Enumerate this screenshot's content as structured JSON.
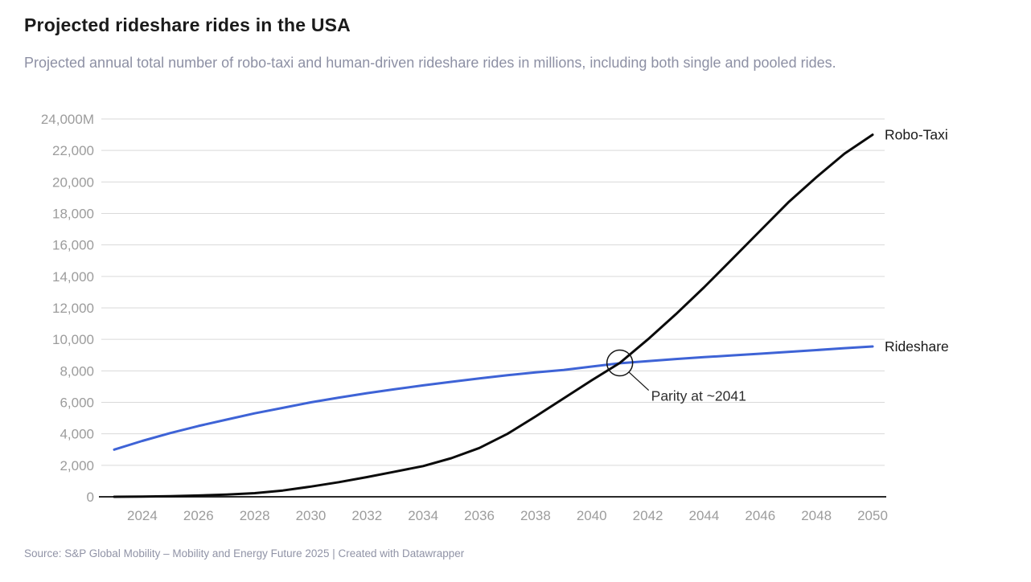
{
  "header": {
    "title": "Projected rideshare rides in the USA",
    "subtitle": "Projected annual total number of robo-taxi and human-driven rideshare rides in millions, including both single and pooled rides."
  },
  "footer": {
    "source": "Source: S&P Global Mobility – Mobility and Energy Future 2025 | Created with Datawrapper"
  },
  "colors": {
    "robo_taxi_line": "#0b0b0b",
    "rideshare_line": "#3e63d6",
    "gridline": "#d9d9d9",
    "axis_line": "#2a2a2a",
    "tick_label": "#9c9c9c",
    "series_label": "#1a1a1a",
    "annotation_text": "#2f2f2f",
    "annotation_stroke": "#141414"
  },
  "chart_data": {
    "type": "line",
    "title": "Projected rideshare rides in the USA",
    "xlabel": "",
    "ylabel": "",
    "xlim": [
      2023,
      2050
    ],
    "ylim": [
      0,
      24000
    ],
    "grid": true,
    "legend_position": "line-end-labels",
    "x": [
      2023,
      2024,
      2025,
      2026,
      2027,
      2028,
      2029,
      2030,
      2031,
      2032,
      2033,
      2034,
      2035,
      2036,
      2037,
      2038,
      2039,
      2040,
      2041,
      2042,
      2043,
      2044,
      2045,
      2046,
      2047,
      2048,
      2049,
      2050
    ],
    "series": [
      {
        "name": "Robo-Taxi",
        "color_key": "robo_taxi_line",
        "values": [
          0,
          15,
          40,
          80,
          140,
          230,
          400,
          650,
          930,
          1250,
          1600,
          1950,
          2450,
          3100,
          4000,
          5100,
          6250,
          7400,
          8500,
          10000,
          11600,
          13300,
          15100,
          16900,
          18700,
          20300,
          21800,
          23000
        ]
      },
      {
        "name": "Rideshare",
        "color_key": "rideshare_line",
        "values": [
          3000,
          3550,
          4050,
          4500,
          4900,
          5300,
          5650,
          6000,
          6300,
          6580,
          6840,
          7080,
          7300,
          7520,
          7720,
          7900,
          8060,
          8270,
          8480,
          8620,
          8750,
          8870,
          8980,
          9090,
          9200,
          9320,
          9440,
          9550
        ]
      }
    ],
    "y_ticks": [
      {
        "value": 0,
        "label": "0"
      },
      {
        "value": 2000,
        "label": "2,000"
      },
      {
        "value": 4000,
        "label": "4,000"
      },
      {
        "value": 6000,
        "label": "6,000"
      },
      {
        "value": 8000,
        "label": "8,000"
      },
      {
        "value": 10000,
        "label": "10,000"
      },
      {
        "value": 12000,
        "label": "12,000"
      },
      {
        "value": 14000,
        "label": "14,000"
      },
      {
        "value": 16000,
        "label": "16,000"
      },
      {
        "value": 18000,
        "label": "18,000"
      },
      {
        "value": 20000,
        "label": "20,000"
      },
      {
        "value": 22000,
        "label": "22,000"
      },
      {
        "value": 24000,
        "label": "24,000M"
      }
    ],
    "x_ticks": [
      {
        "value": 2024,
        "label": "2024"
      },
      {
        "value": 2026,
        "label": "2026"
      },
      {
        "value": 2028,
        "label": "2028"
      },
      {
        "value": 2030,
        "label": "2030"
      },
      {
        "value": 2032,
        "label": "2032"
      },
      {
        "value": 2034,
        "label": "2034"
      },
      {
        "value": 2036,
        "label": "2036"
      },
      {
        "value": 2038,
        "label": "2038"
      },
      {
        "value": 2040,
        "label": "2040"
      },
      {
        "value": 2042,
        "label": "2042"
      },
      {
        "value": 2044,
        "label": "2044"
      },
      {
        "value": 2046,
        "label": "2046"
      },
      {
        "value": 2048,
        "label": "2048"
      },
      {
        "value": 2050,
        "label": "2050"
      }
    ],
    "annotation": {
      "label": "Parity at ~2041",
      "x": 2041,
      "y": 8500,
      "circle_radius": 16
    }
  }
}
